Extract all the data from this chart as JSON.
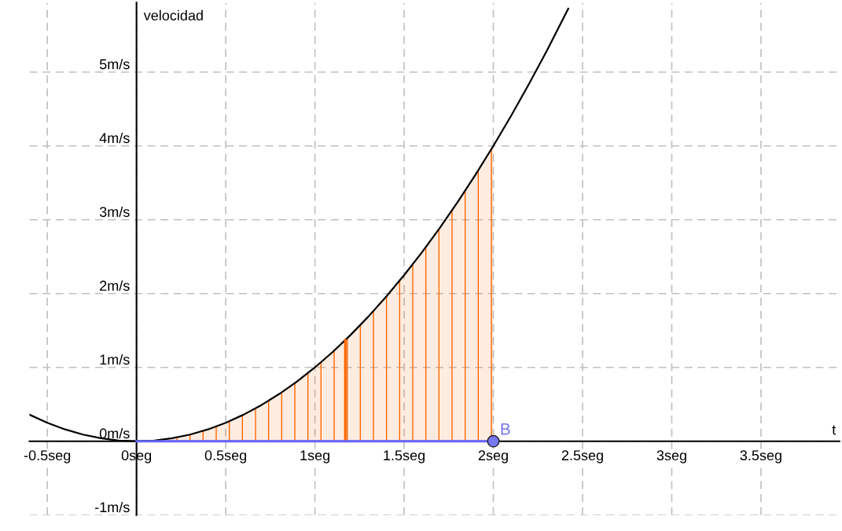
{
  "chart_data": {
    "type": "area",
    "xlabel": "t",
    "ylabel": "velocidad",
    "xlim": [
      -0.6,
      3.94
    ],
    "ylim": [
      -1,
      5.94
    ],
    "xticks": [
      {
        "value": -0.5,
        "label": "-0.5seg"
      },
      {
        "value": 0,
        "label": "0seg"
      },
      {
        "value": 0.5,
        "label": "0.5seg"
      },
      {
        "value": 1,
        "label": "1seg"
      },
      {
        "value": 1.5,
        "label": "1.5seg"
      },
      {
        "value": 2,
        "label": "2seg"
      },
      {
        "value": 2.5,
        "label": "2.5seg"
      },
      {
        "value": 3,
        "label": "3seg"
      },
      {
        "value": 3.5,
        "label": "3.5seg"
      }
    ],
    "yticks": [
      {
        "value": -1,
        "label": "-1m/s"
      },
      {
        "value": 0,
        "label": "0m/s"
      },
      {
        "value": 1,
        "label": "1m/s"
      },
      {
        "value": 2,
        "label": "2m/s"
      },
      {
        "value": 3,
        "label": "3m/s"
      },
      {
        "value": 4,
        "label": "4m/s"
      },
      {
        "value": 5,
        "label": "5m/s"
      }
    ],
    "grid": true,
    "series": [
      {
        "color": "#ff6600",
        "x": [
          0,
          0.05,
          0.1,
          0.15,
          0.2,
          0.25,
          0.3,
          0.35,
          0.4,
          0.45,
          0.5,
          0.55,
          0.6,
          0.65,
          0.7,
          0.75,
          0.8,
          0.85,
          0.9,
          0.95,
          1,
          1.05,
          1.1,
          1.15,
          1.2,
          1.25,
          1.3,
          1.35,
          1.4,
          1.45,
          1.5,
          1.55,
          1.6,
          1.65,
          1.7,
          1.75,
          1.8,
          1.85,
          1.9,
          1.95,
          2
        ],
        "values": [
          0,
          0,
          0.01,
          0.02,
          0.04,
          0.06,
          0.09,
          0.12,
          0.16,
          0.2,
          0.25,
          0.3,
          0.36,
          0.42,
          0.49,
          0.56,
          0.64,
          0.72,
          0.81,
          0.9,
          1,
          1.1,
          1.21,
          1.32,
          1.44,
          1.56,
          1.69,
          1.82,
          1.96,
          2.1,
          2.25,
          2.4,
          2.56,
          2.72,
          2.89,
          3.06,
          3.24,
          3.42,
          3.61,
          3.8,
          4
        ]
      },
      {
        "type": "line",
        "color": "#000000",
        "x": [
          -0.6,
          -0.5,
          -0.4,
          -0.3,
          -0.2,
          -0.1,
          0,
          0.1,
          0.2,
          0.3,
          0.4,
          0.5,
          0.6,
          0.7,
          0.8,
          0.9,
          1,
          1.1,
          1.2,
          1.3,
          1.4,
          1.5,
          1.6,
          1.7,
          1.8,
          1.9,
          2,
          2.1,
          2.2,
          2.3,
          2.42
        ],
        "values": [
          0.36,
          0.25,
          0.16,
          0.09,
          0.04,
          0.01,
          0,
          0.01,
          0.04,
          0.09,
          0.16,
          0.25,
          0.36,
          0.49,
          0.64,
          0.81,
          1,
          1.21,
          1.44,
          1.69,
          1.96,
          2.25,
          2.56,
          2.89,
          3.24,
          3.61,
          4,
          4.41,
          4.84,
          5.29,
          5.86
        ]
      },
      {
        "type": "line",
        "color": "#ff6600",
        "x": [
          1.17,
          1.17
        ],
        "values": [
          0,
          1.37
        ]
      },
      {
        "type": "line",
        "color": "#6666ff",
        "x": [
          0,
          2
        ],
        "values": [
          0,
          0
        ]
      },
      {
        "type": "scatter",
        "color": "#7777ee",
        "marker": "circle",
        "x": [
          2
        ],
        "values": [
          0
        ]
      }
    ],
    "annotations": [
      {
        "text": "B",
        "x": 2,
        "y": 0
      }
    ]
  }
}
